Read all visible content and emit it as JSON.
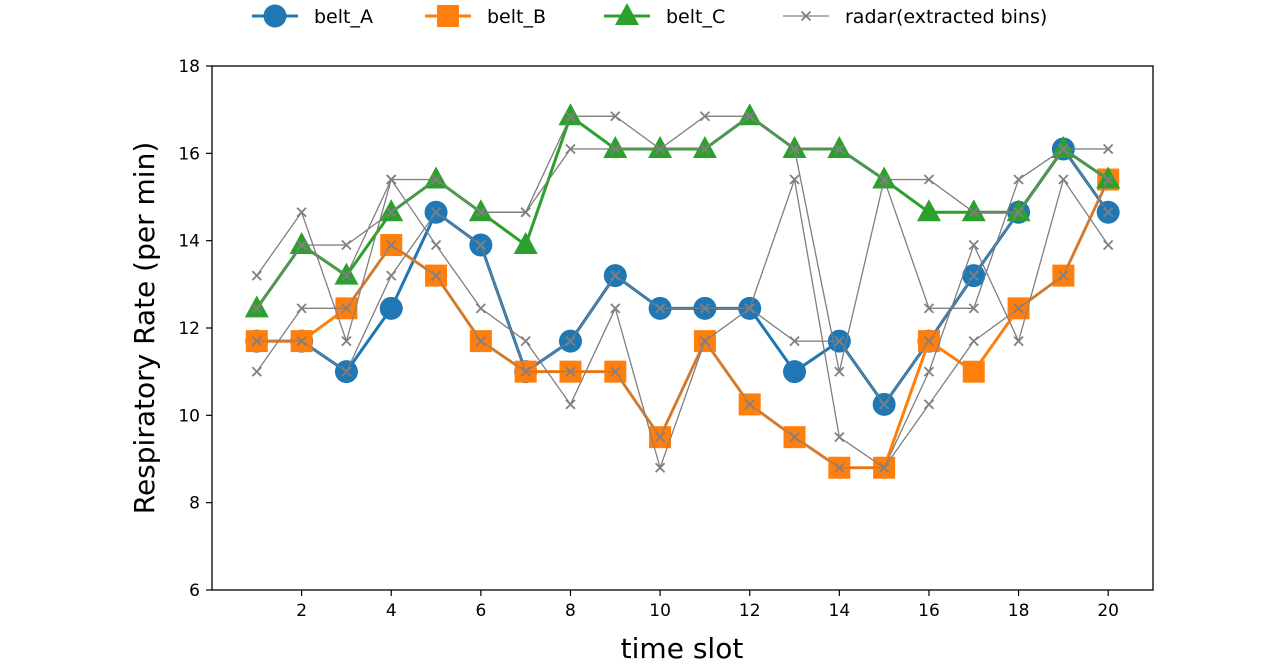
{
  "chart_data": {
    "type": "line",
    "xlabel": "time slot",
    "ylabel": "Respiratory Rate (per min)",
    "xlim": [
      0,
      21
    ],
    "ylim": [
      6,
      18
    ],
    "xticks": [
      2,
      4,
      6,
      8,
      10,
      12,
      14,
      16,
      18,
      20
    ],
    "yticks": [
      6,
      8,
      10,
      12,
      14,
      16,
      18
    ],
    "grid": false,
    "legend_position": "top-center",
    "x": [
      1,
      2,
      3,
      4,
      5,
      6,
      7,
      8,
      9,
      10,
      11,
      12,
      13,
      14,
      15,
      16,
      17,
      18,
      19,
      20
    ],
    "series": [
      {
        "name": "belt_A",
        "color": "#1f77b4",
        "marker": "circle",
        "values": [
          11.7,
          11.7,
          11.0,
          12.45,
          14.65,
          13.9,
          11.0,
          11.7,
          13.2,
          12.45,
          12.45,
          12.45,
          11.0,
          11.7,
          10.25,
          11.7,
          13.2,
          14.65,
          16.1,
          14.65
        ]
      },
      {
        "name": "belt_B",
        "color": "#ff7f0e",
        "marker": "square",
        "values": [
          11.7,
          11.7,
          12.45,
          13.9,
          13.2,
          11.7,
          11.0,
          11.0,
          11.0,
          9.5,
          11.7,
          10.25,
          9.5,
          8.8,
          8.8,
          11.7,
          11.0,
          12.45,
          13.2,
          15.4
        ]
      },
      {
        "name": "belt_C",
        "color": "#2ca02c",
        "marker": "triangle",
        "values": [
          12.45,
          13.9,
          13.2,
          14.65,
          15.4,
          14.65,
          13.9,
          16.85,
          16.1,
          16.1,
          16.1,
          16.85,
          16.1,
          16.1,
          15.4,
          14.65,
          14.65,
          14.65,
          16.1,
          15.4
        ]
      }
    ],
    "radar": {
      "name": "radar(extracted bins)",
      "color": "#808080",
      "marker": "x",
      "lines": [
        [
          11.7,
          11.7,
          11.0,
          13.2,
          14.65,
          13.9,
          11.0,
          11.7,
          13.2,
          12.45,
          12.45,
          12.45,
          11.7,
          11.7,
          10.25,
          11.7,
          13.2,
          14.65,
          16.1,
          14.65
        ],
        [
          11.0,
          12.45,
          12.45,
          13.9,
          13.2,
          11.7,
          11.0,
          11.0,
          11.0,
          9.5,
          11.7,
          10.25,
          9.5,
          8.8,
          8.8,
          10.25,
          11.7,
          12.45,
          13.2,
          15.4
        ],
        [
          12.45,
          13.9,
          13.9,
          14.65,
          15.4,
          14.65,
          14.65,
          16.85,
          16.85,
          16.1,
          16.85,
          16.85,
          16.1,
          16.1,
          15.4,
          15.4,
          14.65,
          14.65,
          16.1,
          16.1
        ],
        [
          13.2,
          14.65,
          11.7,
          15.4,
          13.9,
          12.45,
          11.7,
          10.25,
          12.45,
          8.8,
          11.7,
          12.45,
          15.4,
          9.5,
          8.8,
          11.0,
          13.9,
          11.7,
          15.4,
          13.9
        ],
        [
          12.45,
          13.9,
          13.2,
          15.4,
          15.4,
          14.65,
          14.65,
          16.1,
          16.1,
          16.1,
          16.1,
          16.85,
          16.1,
          11.0,
          15.4,
          12.45,
          12.45,
          15.4,
          16.1,
          15.4
        ]
      ]
    }
  }
}
